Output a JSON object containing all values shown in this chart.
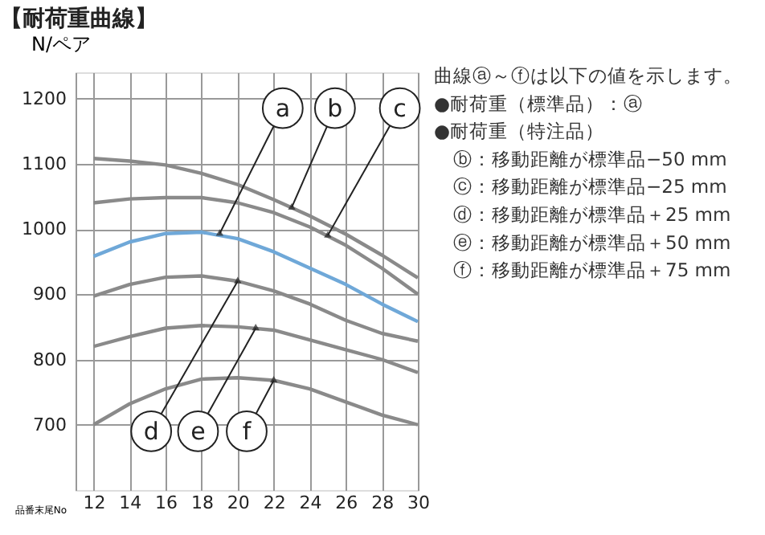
{
  "chart_data": {
    "type": "line",
    "title": "【耐荷重曲線】",
    "ylabel": "N/ペア",
    "xlabel": "品番末尾No",
    "x": [
      12,
      14,
      16,
      18,
      20,
      22,
      24,
      26,
      28,
      30
    ],
    "xlim": [
      11,
      30
    ],
    "xticks": [
      12,
      14,
      16,
      18,
      20,
      22,
      24,
      26,
      28,
      30
    ],
    "ylim": [
      600,
      1240
    ],
    "yticks": [
      700,
      800,
      900,
      1000,
      1100,
      1200
    ],
    "grid": true,
    "legend": false,
    "marker": "none",
    "line_style": "solid",
    "series": [
      {
        "color": "#8a8a8a",
        "values": [
          1108,
          1104,
          1098,
          1085,
          1068,
          1045,
          1020,
          992,
          960,
          925
        ]
      },
      {
        "color": "#8a8a8a",
        "values": [
          1040,
          1046,
          1048,
          1048,
          1040,
          1025,
          1003,
          975,
          940,
          900
        ]
      },
      {
        "color": "#6fa8d8",
        "values": [
          958,
          980,
          993,
          995,
          985,
          965,
          940,
          915,
          885,
          858
        ]
      },
      {
        "color": "#8a8a8a",
        "values": [
          897,
          915,
          926,
          928,
          920,
          905,
          885,
          860,
          840,
          828
        ]
      },
      {
        "color": "#8a8a8a",
        "values": [
          820,
          835,
          848,
          852,
          850,
          845,
          830,
          815,
          800,
          780
        ]
      },
      {
        "color": "#8a8a8a",
        "values": [
          700,
          732,
          755,
          770,
          772,
          768,
          755,
          735,
          715,
          700
        ]
      }
    ],
    "annotations": [
      {
        "text": "a",
        "x": 19,
        "y": 993
      },
      {
        "text": "b",
        "x": 23,
        "y": 1033
      },
      {
        "text": "c",
        "x": 25,
        "y": 990
      },
      {
        "text": "d",
        "x": 20,
        "y": 920
      },
      {
        "text": "e",
        "x": 21,
        "y": 848
      },
      {
        "text": "f",
        "x": 22,
        "y": 768
      },
      "曲線ⓐ～ⓕは以下の値を示します。",
      "●耐荷重（標準品）：ⓐ",
      "●耐荷重（特注品）",
      "ⓑ：移動距離が標準品−50 mm",
      "ⓒ：移動距離が標準品−25 mm",
      "ⓓ：移動距離が標準品＋25 mm",
      "ⓔ：移動距離が標準品＋50 mm",
      "ⓕ：移動距離が標準品＋75 mm"
    ]
  }
}
